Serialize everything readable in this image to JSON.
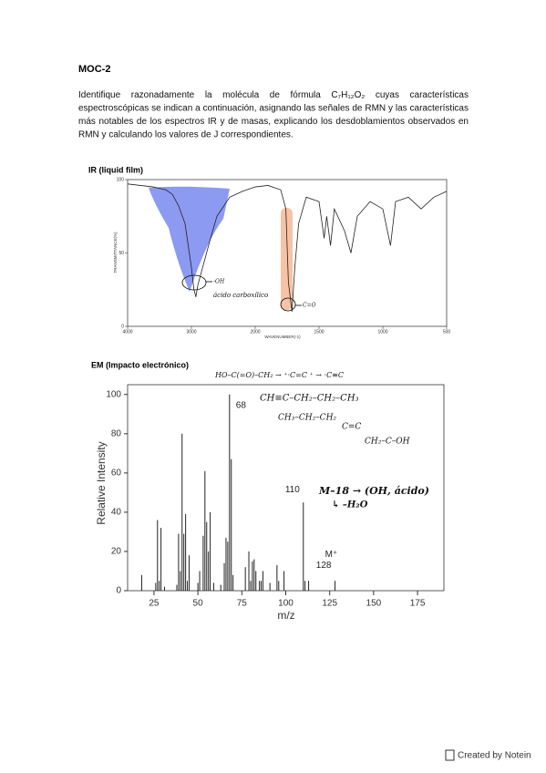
{
  "header": {
    "title": "MOC-2"
  },
  "body": {
    "paragraph": "Identifique razonadamente la molécula de fórmula C₇H₁₂O₂ cuyas características espectroscópicas se indican a continuación, asignando las señales de RMN y las características más notables de los espectros IR y de masas, explicando los desdoblamientos observados en RMN y calculando los valores de J correspondientes."
  },
  "ir": {
    "title": "IR (liquid film)",
    "xlabel": "WAVENUMBER(-1)",
    "ylabel": "TRANSMITTANCE(%)",
    "xlim": [
      4000,
      500
    ],
    "ylim": [
      0,
      100
    ],
    "xticks": [
      4000,
      3000,
      2000,
      1500,
      1000,
      500
    ],
    "yticks": [
      0,
      50,
      100
    ],
    "x": [
      4000,
      3600,
      3400,
      3300,
      3200,
      3100,
      3000,
      2960,
      2930,
      2900,
      2700,
      2600,
      2400,
      2200,
      2000,
      1900,
      1800,
      1760,
      1740,
      1712,
      1690,
      1660,
      1600,
      1500,
      1460,
      1440,
      1410,
      1380,
      1300,
      1250,
      1200,
      1100,
      1000,
      940,
      900,
      800,
      700,
      600,
      500
    ],
    "values": [
      97,
      95,
      93,
      90,
      82,
      70,
      40,
      25,
      20,
      28,
      60,
      75,
      88,
      92,
      95,
      96,
      93,
      80,
      30,
      10,
      40,
      70,
      88,
      85,
      60,
      75,
      55,
      80,
      65,
      50,
      75,
      85,
      80,
      55,
      85,
      88,
      80,
      88,
      92
    ],
    "annotations": [
      "-OH",
      "ácido carboxílico",
      "C=O"
    ]
  },
  "ms": {
    "title": "EM (Impacto electrónico)",
    "xlabel": "m/z",
    "ylabel": "Relative Intensity",
    "xlim": [
      10,
      190
    ],
    "ylim": [
      0,
      105
    ],
    "xticks": [
      25,
      50,
      75,
      100,
      125,
      150,
      175
    ],
    "yticks": [
      0,
      20,
      40,
      60,
      80,
      100
    ],
    "x": [
      18,
      26,
      27,
      28,
      29,
      31,
      38,
      39,
      40,
      41,
      42,
      43,
      44,
      45,
      50,
      51,
      53,
      54,
      55,
      56,
      57,
      59,
      63,
      65,
      66,
      67,
      68,
      69,
      70,
      77,
      79,
      80,
      81,
      82,
      83,
      85,
      86,
      87,
      91,
      95,
      96,
      99,
      110,
      111,
      113,
      128
    ],
    "values": [
      8,
      4,
      36,
      5,
      32,
      2,
      3,
      29,
      10,
      80,
      29,
      39,
      5,
      18,
      4,
      10,
      28,
      61,
      35,
      20,
      40,
      4,
      3,
      14,
      27,
      25,
      100,
      67,
      8,
      12,
      20,
      5,
      15,
      16,
      10,
      5,
      5,
      10,
      4,
      13,
      5,
      10,
      45,
      5,
      5,
      5
    ],
    "peak_labels": [
      68,
      110,
      128
    ],
    "molecular_ion": "M⁺",
    "annotations": [
      "CH≡C–CH₂–CH₂–CH₃",
      "CH₃–CH₂–CH₂",
      "C=C",
      "CH₂–C–OH",
      "M–18 → (OH, ácido)",
      "↳ –H₂O"
    ]
  },
  "footer": "Created by Notein"
}
